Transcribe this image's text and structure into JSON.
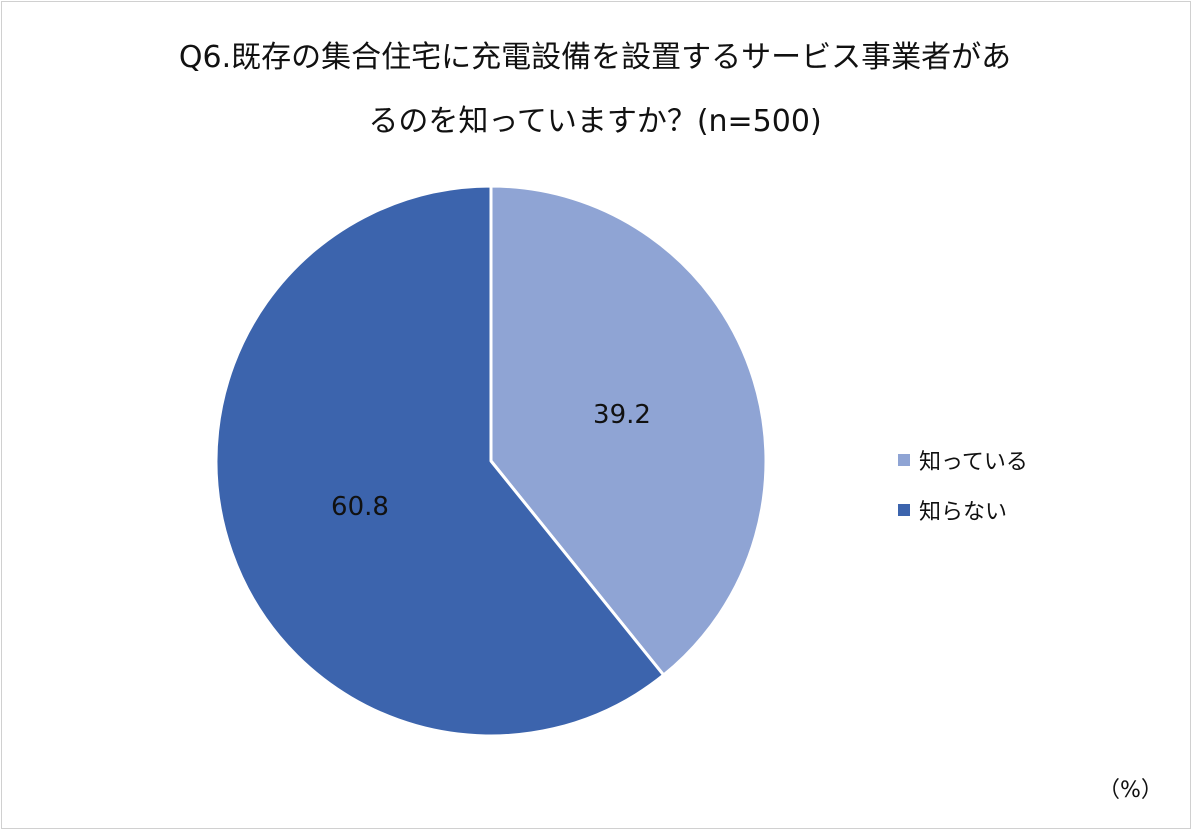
{
  "chart_data": {
    "type": "pie",
    "title_lines": [
      "Q6.既存の集合住宅に充電設備を設置するサービス事業者があ",
      "るのを知っていますか？(n=500)"
    ],
    "unit_label": "（%）",
    "slices": [
      {
        "label": "知っている",
        "value": 39.2,
        "data_label": "39.2",
        "color": "#8fa4d4"
      },
      {
        "label": "知らない",
        "value": 60.8,
        "data_label": "60.8",
        "color": "#3c64ad"
      }
    ],
    "start_angle": "12 o'clock",
    "direction": "clockwise",
    "legend_position": "right"
  }
}
